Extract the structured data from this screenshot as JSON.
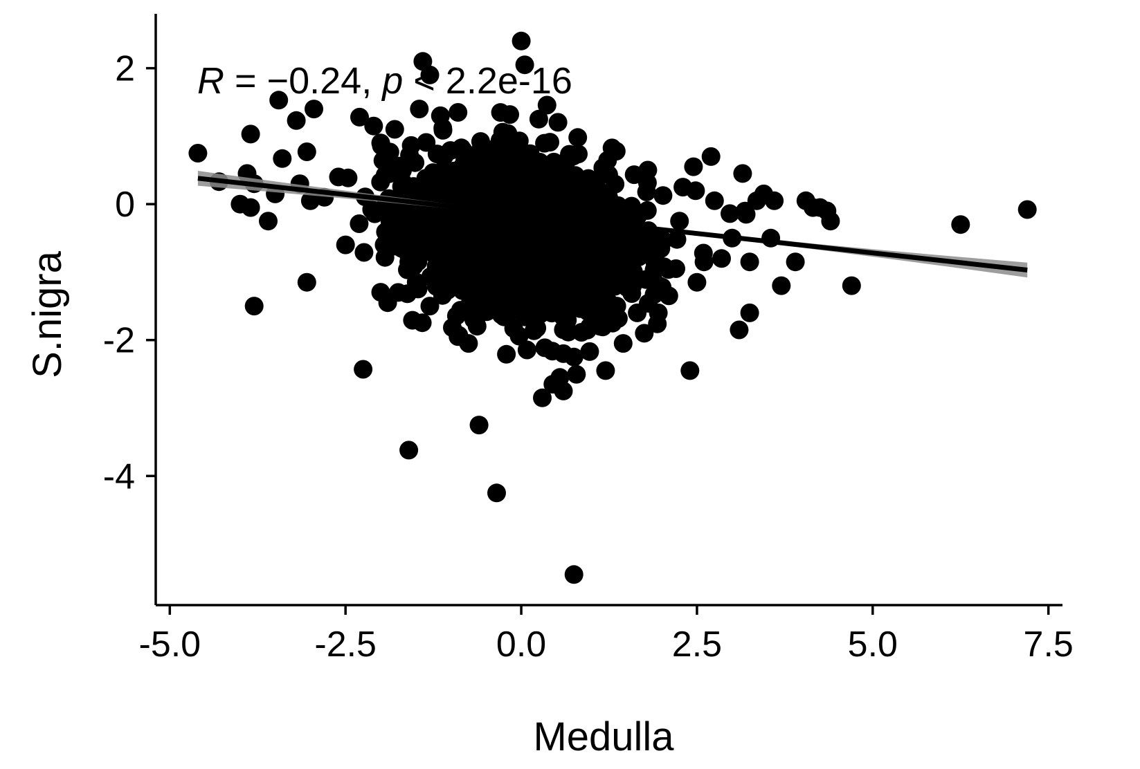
{
  "chart_data": {
    "type": "scatter",
    "xlabel": "Medulla",
    "ylabel": "S.nigra",
    "xlim": [
      -5.2,
      7.7
    ],
    "ylim": [
      -5.9,
      2.8
    ],
    "x_ticks": [
      -5.0,
      -2.5,
      0.0,
      2.5,
      5.0,
      7.5
    ],
    "x_tick_labels": [
      "-5.0",
      "-2.5",
      "0.0",
      "2.5",
      "5.0",
      "7.5"
    ],
    "y_ticks": [
      2,
      0,
      -2,
      -4
    ],
    "y_tick_labels": [
      "2",
      "0",
      "-2",
      "-4"
    ],
    "grid": false,
    "legend": "none",
    "annotation": {
      "r_symbol": "R",
      "r_equals": " = ",
      "r_value": "−0.24",
      "separator": ", ",
      "p_symbol": "p",
      "p_text": " < 2.2e-16"
    },
    "regression": {
      "x_range": [
        -4.6,
        7.2
      ],
      "y_start": 0.38,
      "y_end": -0.97,
      "ci_half_width_ends": 0.11,
      "ci_half_width_center": 0.02,
      "line_color": "#000000",
      "band_color": "#8c8c8c"
    },
    "cluster": {
      "count": 1400,
      "center_x": 0.0,
      "center_y": -0.45,
      "sd_x": 0.85,
      "sd_y": 0.6,
      "slope": -0.115,
      "seed": 42
    },
    "points": [
      {
        "x": -4.6,
        "y": 0.75
      },
      {
        "x": -4.3,
        "y": 0.33
      },
      {
        "x": -3.9,
        "y": 0.45
      },
      {
        "x": -3.85,
        "y": 1.03
      },
      {
        "x": -3.8,
        "y": 0.3
      },
      {
        "x": -4.0,
        "y": 0.0
      },
      {
        "x": -3.85,
        "y": -0.05
      },
      {
        "x": -3.6,
        "y": -0.25
      },
      {
        "x": -3.8,
        "y": -1.5
      },
      {
        "x": -3.5,
        "y": 0.15
      },
      {
        "x": -3.4,
        "y": 0.67
      },
      {
        "x": -3.45,
        "y": 1.53
      },
      {
        "x": -3.2,
        "y": 1.23
      },
      {
        "x": -3.15,
        "y": 0.3
      },
      {
        "x": -3.05,
        "y": 0.77
      },
      {
        "x": -3.0,
        "y": 0.05
      },
      {
        "x": -2.95,
        "y": 1.4
      },
      {
        "x": -3.05,
        "y": -1.15
      },
      {
        "x": -2.8,
        "y": 0.1
      },
      {
        "x": -2.6,
        "y": 0.4
      },
      {
        "x": -2.5,
        "y": -0.6
      },
      {
        "x": -2.3,
        "y": 1.28
      },
      {
        "x": -2.25,
        "y": -2.43
      },
      {
        "x": -2.1,
        "y": 1.15
      },
      {
        "x": -2.0,
        "y": 0.9
      },
      {
        "x": -1.9,
        "y": -1.45
      },
      {
        "x": -1.95,
        "y": -0.6
      },
      {
        "x": -1.7,
        "y": -0.65
      },
      {
        "x": -1.6,
        "y": -3.62
      },
      {
        "x": -1.75,
        "y": -1.3
      },
      {
        "x": -1.6,
        "y": -0.85
      },
      {
        "x": -1.4,
        "y": 2.1
      },
      {
        "x": -1.3,
        "y": 1.9
      },
      {
        "x": -1.45,
        "y": 1.4
      },
      {
        "x": -1.3,
        "y": -1.5
      },
      {
        "x": -1.15,
        "y": 1.3
      },
      {
        "x": -0.9,
        "y": 1.35
      },
      {
        "x": -0.6,
        "y": -3.25
      },
      {
        "x": -0.35,
        "y": -4.25
      },
      {
        "x": -0.75,
        "y": -2.05
      },
      {
        "x": -0.9,
        "y": -1.95
      },
      {
        "x": 0.0,
        "y": 2.4
      },
      {
        "x": 0.05,
        "y": 2.05
      },
      {
        "x": 0.25,
        "y": 1.25
      },
      {
        "x": 0.3,
        "y": -2.85
      },
      {
        "x": 0.45,
        "y": -2.65
      },
      {
        "x": 0.55,
        "y": -2.55
      },
      {
        "x": 0.6,
        "y": -2.75
      },
      {
        "x": 0.6,
        "y": -2.2
      },
      {
        "x": 0.75,
        "y": -2.25
      },
      {
        "x": 0.75,
        "y": -5.45
      },
      {
        "x": 1.2,
        "y": -2.45
      },
      {
        "x": 1.3,
        "y": -1.75
      },
      {
        "x": 1.45,
        "y": -2.05
      },
      {
        "x": 1.65,
        "y": -1.6
      },
      {
        "x": 1.75,
        "y": -1.9
      },
      {
        "x": 1.8,
        "y": 0.5
      },
      {
        "x": 1.9,
        "y": -0.85
      },
      {
        "x": 1.95,
        "y": -1.6
      },
      {
        "x": 2.1,
        "y": -1.35
      },
      {
        "x": 2.2,
        "y": -0.95
      },
      {
        "x": 2.3,
        "y": 0.25
      },
      {
        "x": 2.4,
        "y": -2.45
      },
      {
        "x": 2.45,
        "y": 0.55
      },
      {
        "x": 2.5,
        "y": -1.15
      },
      {
        "x": 2.6,
        "y": -0.85
      },
      {
        "x": 2.7,
        "y": 0.7
      },
      {
        "x": 2.75,
        "y": 0.05
      },
      {
        "x": 2.85,
        "y": -0.8
      },
      {
        "x": 3.0,
        "y": -0.5
      },
      {
        "x": 3.1,
        "y": -1.85
      },
      {
        "x": 3.15,
        "y": 0.45
      },
      {
        "x": 3.2,
        "y": -0.15
      },
      {
        "x": 3.25,
        "y": -0.85
      },
      {
        "x": 3.25,
        "y": -1.6
      },
      {
        "x": 3.35,
        "y": 0.05
      },
      {
        "x": 3.45,
        "y": 0.15
      },
      {
        "x": 3.55,
        "y": -0.5
      },
      {
        "x": 3.6,
        "y": 0.05
      },
      {
        "x": 3.7,
        "y": -1.2
      },
      {
        "x": 3.9,
        "y": -0.85
      },
      {
        "x": 4.05,
        "y": 0.05
      },
      {
        "x": 4.15,
        "y": -0.05
      },
      {
        "x": 4.25,
        "y": -0.05
      },
      {
        "x": 4.35,
        "y": -0.1
      },
      {
        "x": 4.4,
        "y": -0.25
      },
      {
        "x": 4.7,
        "y": -1.2
      },
      {
        "x": 6.25,
        "y": -0.3
      },
      {
        "x": 7.2,
        "y": -0.08
      }
    ]
  }
}
